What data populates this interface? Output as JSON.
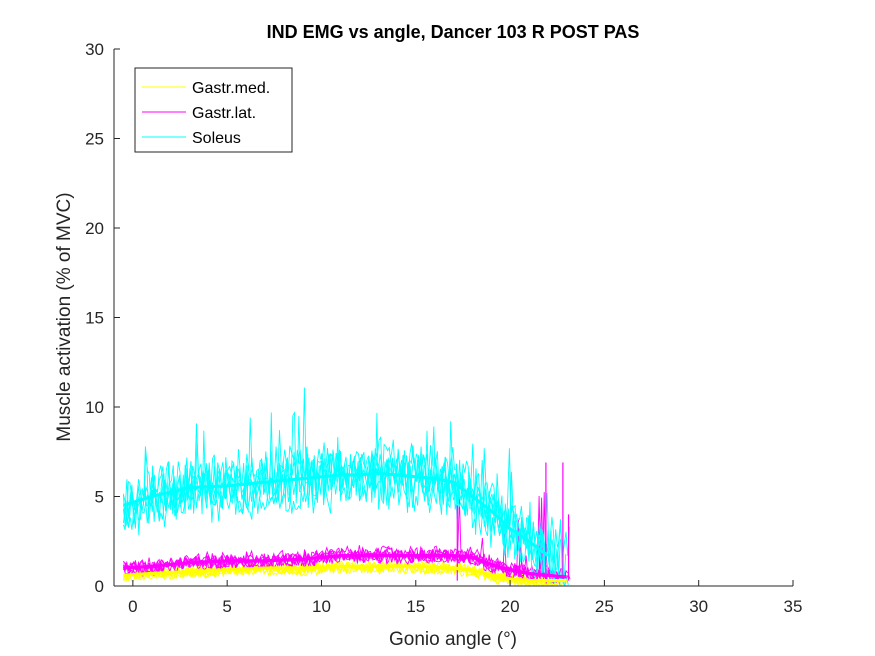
{
  "chart_data": {
    "type": "line",
    "title": "IND EMG vs angle, Dancer 103 R POST PAS",
    "xlabel": "Gonio angle (°)",
    "ylabel": "Muscle activation (% of MVC)",
    "xlim": [
      -1,
      35
    ],
    "ylim": [
      0,
      30
    ],
    "xticks": [
      0,
      5,
      10,
      15,
      20,
      25,
      30,
      35
    ],
    "yticks": [
      0,
      5,
      10,
      15,
      20,
      25,
      30
    ],
    "xtick_labels": [
      "0",
      "5",
      "10",
      "15",
      "20",
      "25",
      "30",
      "35"
    ],
    "ytick_labels": [
      "0",
      "5",
      "10",
      "15",
      "20",
      "25",
      "30"
    ],
    "grid": false,
    "legend_position": "top-left",
    "series": [
      {
        "name": "Gastr.med.",
        "color": "#ffff00",
        "x": [
          -0.5,
          1,
          3,
          5,
          7,
          9,
          11,
          13,
          15,
          17,
          18,
          19,
          20,
          21,
          22,
          23
        ],
        "y": [
          0.6,
          0.7,
          0.8,
          0.9,
          1.0,
          1.0,
          1.1,
          1.1,
          1.1,
          1.0,
          0.9,
          0.6,
          0.4,
          0.3,
          0.3,
          0.3
        ]
      },
      {
        "name": "Gastr.lat.",
        "color": "#ff00ff",
        "x": [
          -0.5,
          1,
          3,
          5,
          7,
          9,
          11,
          13,
          15,
          17,
          18,
          19,
          20,
          21,
          22,
          23
        ],
        "y": [
          1.0,
          1.1,
          1.3,
          1.4,
          1.4,
          1.5,
          1.7,
          1.7,
          1.7,
          1.7,
          1.6,
          1.2,
          0.9,
          0.7,
          0.6,
          0.5
        ]
      },
      {
        "name": "Soleus",
        "color": "#00ffff",
        "x": [
          -0.5,
          1,
          3,
          5,
          7,
          9,
          10,
          11,
          12,
          13,
          14,
          15,
          16,
          17,
          18,
          19,
          20,
          21,
          22
        ],
        "y": [
          4.5,
          5.0,
          5.5,
          5.6,
          5.8,
          6.0,
          6.1,
          6.2,
          6.2,
          6.3,
          6.2,
          6.1,
          6.0,
          5.8,
          5.0,
          4.2,
          3.2,
          2.5,
          1.7
        ]
      }
    ]
  }
}
